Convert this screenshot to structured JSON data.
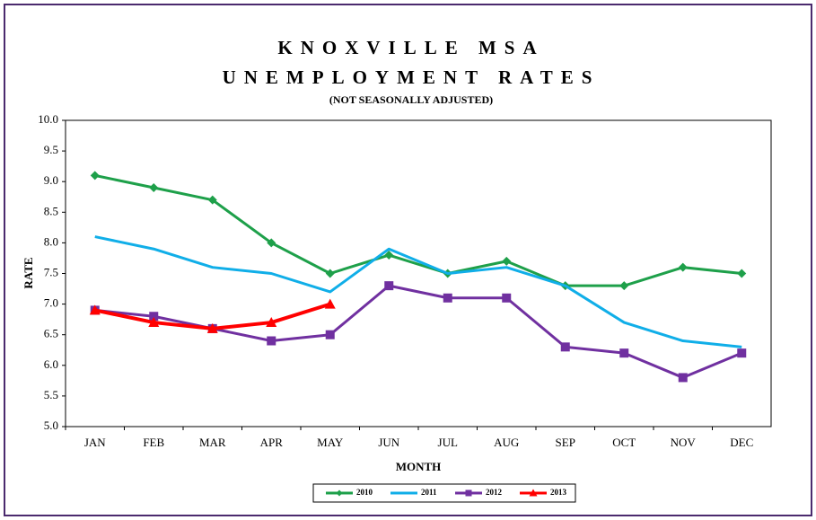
{
  "chart_data": {
    "type": "line",
    "title": [
      "KNOXVILLE MSA",
      "UNEMPLOYMENT RATES"
    ],
    "subtitle": "(NOT SEASONALLY ADJUSTED)",
    "x_label": "MONTH",
    "y_label": "RATE",
    "categories": [
      "JAN",
      "FEB",
      "MAR",
      "APR",
      "MAY",
      "JUN",
      "JUL",
      "AUG",
      "SEP",
      "OCT",
      "NOV",
      "DEC"
    ],
    "ylim": [
      5,
      10
    ],
    "yticks": [
      {
        "value": 5,
        "label": "5.0"
      },
      5.5,
      {
        "value": 6,
        "label": "6.0"
      },
      6.5,
      {
        "value": 7,
        "label": "7.0"
      },
      7.5,
      {
        "value": 8,
        "label": "8.0"
      },
      8.5,
      {
        "value": 9,
        "label": "9.0"
      },
      9.5,
      {
        "value": 10,
        "label": "10.0"
      }
    ],
    "grid": false,
    "legend": "bottom",
    "series": [
      {
        "name": "2010",
        "color": "#1ea04a",
        "marker": "diamond",
        "values": [
          9.1,
          8.9,
          8.7,
          8.0,
          7.5,
          7.8,
          7.5,
          7.7,
          7.3,
          7.3,
          7.6,
          7.5
        ]
      },
      {
        "name": "2011",
        "color": "#10aee8",
        "marker": "none",
        "values": [
          8.1,
          7.9,
          7.6,
          7.5,
          7.2,
          7.9,
          7.5,
          7.6,
          7.3,
          6.7,
          6.4,
          6.3
        ]
      },
      {
        "name": "2012",
        "color": "#7030a0",
        "marker": "square",
        "values": [
          6.9,
          6.8,
          6.6,
          6.4,
          6.5,
          7.3,
          7.1,
          7.1,
          6.3,
          6.2,
          5.8,
          6.2
        ]
      },
      {
        "name": "2013",
        "color": "#ff0000",
        "marker": "triangle",
        "values": [
          6.9,
          6.7,
          6.6,
          6.7,
          7.0,
          null,
          null,
          null,
          null,
          null,
          null,
          null
        ]
      }
    ]
  }
}
